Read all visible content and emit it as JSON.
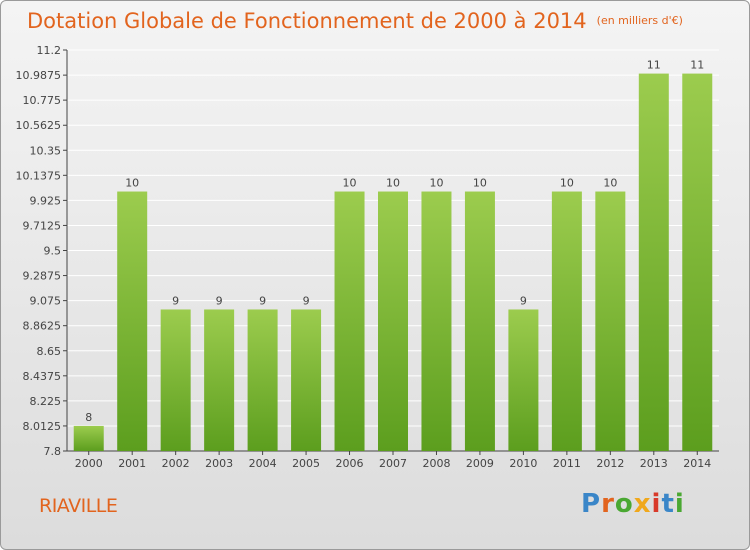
{
  "header": {
    "title": "Dotation Globale de Fonctionnement de 2000 à 2014",
    "unit": "(en milliers d'€)"
  },
  "footer": {
    "city": "RIAVILLE",
    "logo_text": "Proxiti"
  },
  "colors": {
    "bar_top": "#9ccc4e",
    "bar_bottom": "#5c9e1e",
    "title": "#e2641e"
  },
  "chart_data": {
    "type": "bar",
    "title": "Dotation Globale de Fonctionnement de 2000 à 2014",
    "xlabel": "",
    "ylabel": "",
    "categories": [
      "2000",
      "2001",
      "2002",
      "2003",
      "2004",
      "2005",
      "2006",
      "2007",
      "2008",
      "2009",
      "2010",
      "2011",
      "2012",
      "2013",
      "2014"
    ],
    "values": [
      8,
      10,
      9,
      9,
      9,
      9,
      10,
      10,
      10,
      10,
      9,
      10,
      10,
      11,
      11
    ],
    "bar_heights": [
      8.0125,
      10.0,
      9.0,
      9.0,
      9.0,
      9.0,
      10.0,
      10.0,
      10.0,
      10.0,
      9.0,
      10.0,
      10.0,
      11.0,
      11.0
    ],
    "data_labels": [
      "8",
      "10",
      "9",
      "9",
      "9",
      "9",
      "10",
      "10",
      "10",
      "10",
      "9",
      "10",
      "10",
      "11",
      "11"
    ],
    "ylim": [
      7.8,
      11.2
    ],
    "yticks": [
      "7.8",
      "8.0125",
      "8.225",
      "8.4375",
      "8.65",
      "8.8625",
      "9.075",
      "9.2875",
      "9.5",
      "9.7125",
      "9.925",
      "10.1375",
      "10.35",
      "10.5625",
      "10.775",
      "10.9875",
      "11.2"
    ],
    "grid": true,
    "legend": "none"
  }
}
